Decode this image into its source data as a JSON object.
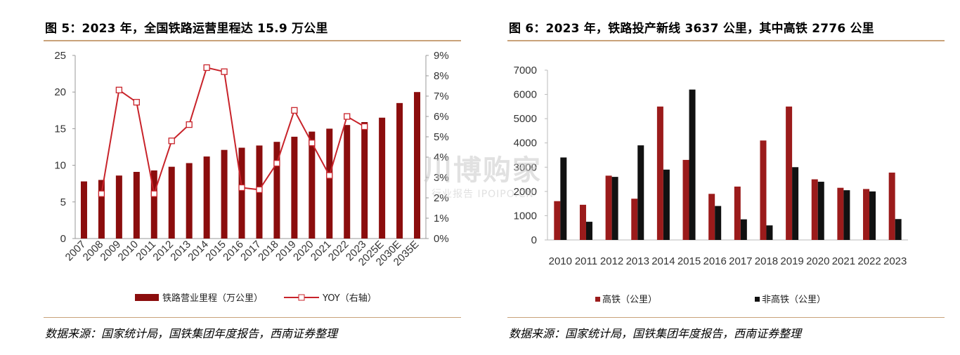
{
  "left": {
    "title": "图 5：2023 年，全国铁路运营里程达 15.9 万公里",
    "source": "数据来源：国家统计局，国铁集团年度报告，西南证券整理",
    "chart_data": {
      "type": "bar",
      "categories": [
        "2007",
        "2008",
        "2009",
        "2010",
        "2011",
        "2012",
        "2013",
        "2014",
        "2015",
        "2016",
        "2017",
        "2018",
        "2019",
        "2020",
        "2021",
        "2022",
        "2023",
        "2025E",
        "2030E",
        "2035E"
      ],
      "series": [
        {
          "name": "铁路营业里程（万公里）",
          "type": "bar",
          "axis": "left",
          "color": "#8b0d0d",
          "values": [
            7.8,
            8.0,
            8.6,
            9.1,
            9.3,
            9.8,
            10.3,
            11.2,
            12.1,
            12.4,
            12.7,
            13.2,
            13.9,
            14.6,
            15.0,
            15.5,
            15.9,
            16.5,
            18.5,
            20.0
          ]
        },
        {
          "name": "YOY（右轴）",
          "type": "line",
          "axis": "right",
          "color": "#c8232a",
          "values": [
            null,
            2.2,
            7.3,
            6.7,
            2.2,
            4.8,
            5.6,
            8.4,
            8.2,
            2.5,
            2.4,
            3.7,
            6.3,
            4.7,
            3.1,
            6.0,
            5.5,
            null,
            null,
            null
          ]
        }
      ],
      "ylim": [
        0,
        25
      ],
      "yticks": [
        0,
        5,
        10,
        15,
        20,
        25
      ],
      "y2lim": [
        0,
        9
      ],
      "y2ticks": [
        "0%",
        "1%",
        "2%",
        "3%",
        "4%",
        "5%",
        "6%",
        "7%",
        "8%",
        "9%"
      ],
      "legend_position": "bottom"
    }
  },
  "right": {
    "title": "图 6：2023 年，铁路投产新线 3637 公里，其中高铁 2776 公里",
    "source": "数据来源：国家统计局，国铁集团年度报告，西南证券整理",
    "chart_data": {
      "type": "bar",
      "categories": [
        "2010",
        "2011",
        "2012",
        "2013",
        "2014",
        "2015",
        "2016",
        "2017",
        "2018",
        "2019",
        "2020",
        "2021",
        "2022",
        "2023"
      ],
      "series": [
        {
          "name": "高铁（公里）",
          "color": "#9b1b1b",
          "values": [
            1600,
            1450,
            2650,
            1700,
            5500,
            3300,
            1900,
            2200,
            4100,
            5500,
            2500,
            2150,
            2100,
            2776
          ]
        },
        {
          "name": "非高铁（公里）",
          "color": "#111111",
          "values": [
            3400,
            750,
            2600,
            3900,
            2900,
            6200,
            1400,
            850,
            600,
            3000,
            2400,
            2050,
            2000,
            861
          ]
        }
      ],
      "ylim": [
        0,
        7000
      ],
      "yticks": [
        0,
        1000,
        2000,
        3000,
        4000,
        5000,
        6000,
        7000
      ],
      "legend_position": "bottom"
    }
  },
  "watermark": {
    "main": "川博购家",
    "sub": "行业报告 IPOIPO.CN"
  }
}
